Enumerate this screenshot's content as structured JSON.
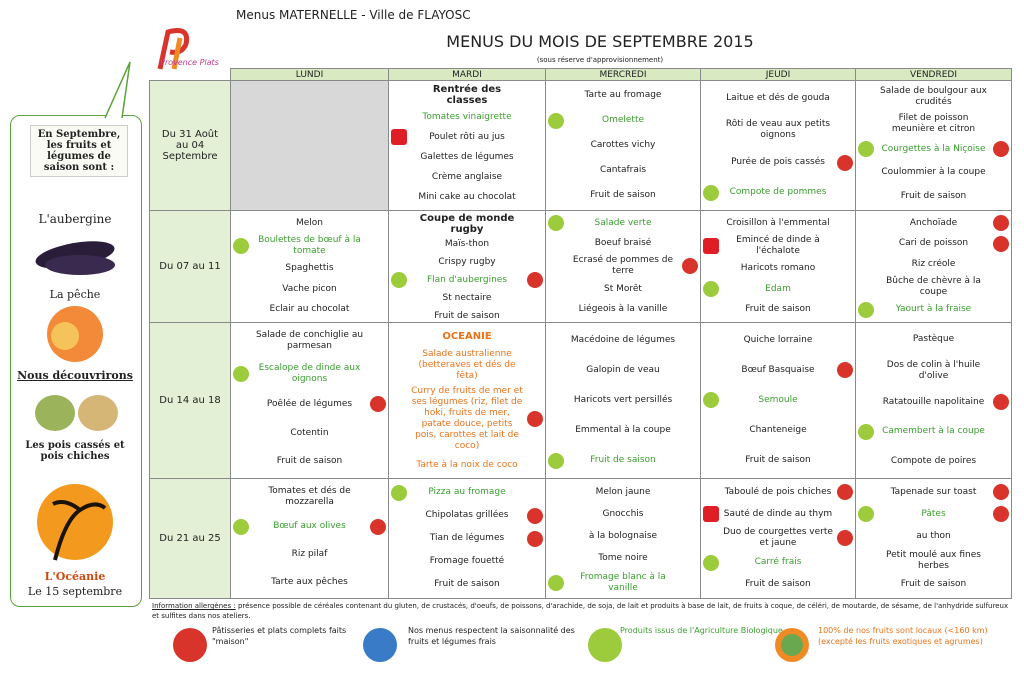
{
  "header": {
    "organization": "Menus MATERNELLE - Ville de FLAYOSC",
    "title": "MENUS DU MOIS DE SEPTEMBRE 2015",
    "subtitle": "(sous réserve d'approvisionnement)",
    "logo": "Provence Plats"
  },
  "sidebar": {
    "intro": "En Septembre, les fruits et légumes de saison sont :",
    "item1": "L'aubergine",
    "item2": "La pêche",
    "discover": "Nous découvrirons",
    "item3": "Les pois cassés et pois chiches",
    "theme": "L'Océanie",
    "theme_date": "Le 15 septembre"
  },
  "table": {
    "days": [
      "LUNDI",
      "MARDI",
      "MERCREDI",
      "JEUDI",
      "VENDREDI"
    ],
    "rows": [
      {
        "week": "Du 31 Août au 04 Septembre",
        "cells": [
          {
            "shaded": true,
            "items": []
          },
          {
            "items": [
              {
                "text": "Rentrée des classes",
                "heading": true
              },
              {
                "text": "Tomates vinaigrette",
                "color": "#3a9d2f"
              },
              {
                "text": "Poulet rôti au jus",
                "icons": [
                  "label"
                ]
              },
              {
                "text": "Galettes de légumes"
              },
              {
                "text": "Crème anglaise"
              },
              {
                "text": "Mini cake au chocolat"
              }
            ]
          },
          {
            "items": [
              {
                "text": "Tarte au fromage"
              },
              {
                "text": "Omelette",
                "color": "#3a9d2f",
                "icons": [
                  "bio"
                ]
              },
              {
                "text": "Carottes vichy"
              },
              {
                "text": "Cantafrais"
              },
              {
                "text": "Fruit de saison"
              }
            ]
          },
          {
            "items": [
              {
                "text": "Laitue et dés de gouda"
              },
              {
                "text": "Rôti de veau aux petits oignons"
              },
              {
                "text": "Purée de pois cassés",
                "icons": [
                  "maison"
                ]
              },
              {
                "text": "Compote de pommes",
                "color": "#3a9d2f",
                "icons": [
                  "bio"
                ]
              }
            ]
          },
          {
            "items": [
              {
                "text": "Salade de boulgour aux crudités"
              },
              {
                "text": "Filet de poisson meunière et citron"
              },
              {
                "text": "Courgettes à la Niçoise",
                "color": "#3a9d2f",
                "icons": [
                  "bio",
                  "maison"
                ]
              },
              {
                "text": "Coulommier à la coupe"
              },
              {
                "text": "Fruit de saison"
              }
            ]
          }
        ]
      },
      {
        "week": "Du 07 au 11",
        "cells": [
          {
            "items": [
              {
                "text": "Melon"
              },
              {
                "text": "Boulettes de bœuf à la tomate",
                "color": "#3a9d2f",
                "icons": [
                  "bio"
                ]
              },
              {
                "text": "Spaghettis"
              },
              {
                "text": "Vache picon"
              },
              {
                "text": "Eclair au chocolat"
              }
            ]
          },
          {
            "items": [
              {
                "text": "Coupe de monde rugby",
                "heading": true
              },
              {
                "text": "Maïs-thon"
              },
              {
                "text": "Crispy rugby"
              },
              {
                "text": "Flan d'aubergines",
                "color": "#3a9d2f",
                "icons": [
                  "bio",
                  "maison"
                ]
              },
              {
                "text": "St nectaire"
              },
              {
                "text": "Fruit de saison"
              }
            ]
          },
          {
            "items": [
              {
                "text": "Salade verte",
                "color": "#3a9d2f",
                "icons": [
                  "bio"
                ]
              },
              {
                "text": "Boeuf braisé"
              },
              {
                "text": "Ecrasé de pommes de terre",
                "icons": [
                  "maison"
                ]
              },
              {
                "text": "St Morêt"
              },
              {
                "text": "Liégeois à la vanille"
              }
            ]
          },
          {
            "items": [
              {
                "text": "Croisillon à l'emmental"
              },
              {
                "text": "Emincé de dinde à l'échalote",
                "icons": [
                  "label"
                ]
              },
              {
                "text": "Haricots romano"
              },
              {
                "text": "Edam",
                "color": "#3a9d2f",
                "icons": [
                  "bio"
                ]
              },
              {
                "text": "Fruit de saison"
              }
            ]
          },
          {
            "items": [
              {
                "text": "Anchoïade",
                "icons": [
                  "maison"
                ]
              },
              {
                "text": "Cari de poisson",
                "icons": [
                  "maison"
                ]
              },
              {
                "text": "Riz créole"
              },
              {
                "text": "Bûche de chèvre à la coupe"
              },
              {
                "text": "Yaourt à la fraise",
                "color": "#3a9d2f",
                "icons": [
                  "bio"
                ]
              }
            ]
          }
        ]
      },
      {
        "week": "Du 14 au 18",
        "cells": [
          {
            "items": [
              {
                "text": "Salade de conchiglie au parmesan"
              },
              {
                "text": "Escalope de dinde aux oignons",
                "color": "#3a9d2f",
                "icons": [
                  "bio"
                ]
              },
              {
                "text": "Poêlée de légumes",
                "icons": [
                  "maison"
                ]
              },
              {
                "text": "Cotentin"
              },
              {
                "text": "Fruit de saison"
              }
            ]
          },
          {
            "items": [
              {
                "text": "OCEANIE",
                "heading": true,
                "color": "#e8731a"
              },
              {
                "text": "Salade australienne (betteraves et dés de fêta)",
                "color": "#e8731a"
              },
              {
                "text": "Curry de fruits de mer et ses légumes (riz, filet de hoki, fruits de mer, patate douce, petits pois, carottes et lait de coco)",
                "color": "#e8731a",
                "icons": [
                  "maison"
                ]
              },
              {
                "text": "Tarte à la noix de coco",
                "color": "#e8731a"
              }
            ]
          },
          {
            "items": [
              {
                "text": "Macédoine de légumes"
              },
              {
                "text": "Galopin de veau"
              },
              {
                "text": "Haricots vert persillés"
              },
              {
                "text": "Emmental à la coupe"
              },
              {
                "text": "Fruit de saison",
                "color": "#3a9d2f",
                "icons": [
                  "bio"
                ]
              }
            ]
          },
          {
            "items": [
              {
                "text": "Quiche lorraine"
              },
              {
                "text": "Bœuf Basquaise",
                "icons": [
                  "maison"
                ]
              },
              {
                "text": "Semoule",
                "color": "#3a9d2f",
                "icons": [
                  "bio"
                ]
              },
              {
                "text": "Chanteneige"
              },
              {
                "text": "Fruit de saison"
              }
            ]
          },
          {
            "items": [
              {
                "text": "Pastèque"
              },
              {
                "text": "Dos de colin à l'huile d'olive"
              },
              {
                "text": "Ratatouille napolitaine",
                "icons": [
                  "maison"
                ]
              },
              {
                "text": "Camembert à la coupe",
                "color": "#3a9d2f",
                "icons": [
                  "bio"
                ]
              },
              {
                "text": "Compote de poires"
              }
            ]
          }
        ]
      },
      {
        "week": "Du 21 au 25",
        "cells": [
          {
            "items": [
              {
                "text": "Tomates et dés de mozzarella"
              },
              {
                "text": "Bœuf aux olives",
                "color": "#3a9d2f",
                "icons": [
                  "bio",
                  "maison"
                ]
              },
              {
                "text": "Riz pilaf"
              },
              {
                "text": "Tarte aux pêches"
              }
            ]
          },
          {
            "items": [
              {
                "text": "Pizza au fromage",
                "color": "#3a9d2f",
                "icons": [
                  "bio"
                ]
              },
              {
                "text": "Chipolatas grillées",
                "icons": [
                  "maison"
                ]
              },
              {
                "text": "Tian de légumes",
                "icons": [
                  "maison"
                ]
              },
              {
                "text": "Fromage fouetté"
              },
              {
                "text": "Fruit de saison"
              }
            ]
          },
          {
            "items": [
              {
                "text": "Melon jaune"
              },
              {
                "text": "Gnocchis"
              },
              {
                "text": "à la bolognaise"
              },
              {
                "text": "Tome noire"
              },
              {
                "text": "Fromage blanc à la vanille",
                "color": "#3a9d2f",
                "icons": [
                  "bio"
                ]
              }
            ]
          },
          {
            "items": [
              {
                "text": "Taboulé de pois chiches",
                "icons": [
                  "maison"
                ]
              },
              {
                "text": "Sauté de dinde au thym",
                "icons": [
                  "label"
                ]
              },
              {
                "text": "Duo de courgettes verte et jaune",
                "icons": [
                  "maison"
                ]
              },
              {
                "text": "Carré frais",
                "color": "#3a9d2f",
                "icons": [
                  "bio"
                ]
              },
              {
                "text": "Fruit de saison"
              }
            ]
          },
          {
            "items": [
              {
                "text": "Tapenade sur toast",
                "icons": [
                  "maison"
                ]
              },
              {
                "text": "Pâtes",
                "color": "#3a9d2f",
                "icons": [
                  "bio",
                  "maison"
                ]
              },
              {
                "text": "au thon"
              },
              {
                "text": "Petit moulé aux fines herbes"
              },
              {
                "text": "Fruit de saison"
              }
            ]
          }
        ]
      }
    ]
  },
  "footer": {
    "allergen_label": "Information allergènes :",
    "allergen_text": "présence possible de céréales contenant du gluten, de crustacés, d'oeufs, de poissons, d'arachide, de soja, de lait et produits à base de lait, de fruits à coque, de céléri, de moutarde, de sésame, de l'anhydride sulfureux et sulfites dans nos ateliers.",
    "legend": [
      "Pâtisseries et plats complets faits \"maison\"",
      "Nos menus respectent la saisonnalité des fruits et légumes frais",
      "Produits issus de l'Agriculture Biologique",
      "100% de nos fruits sont locaux (<160 km) (excepté les fruits exotiques et agrumes)"
    ]
  }
}
